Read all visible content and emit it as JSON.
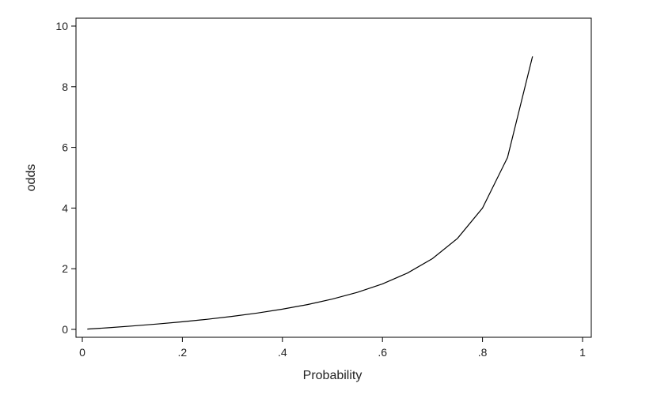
{
  "chart_data": {
    "type": "line",
    "title": "",
    "xlabel": "Probability",
    "ylabel": "odds",
    "xlim": [
      0,
      1
    ],
    "ylim": [
      0,
      10
    ],
    "x_ticks": [
      {
        "value": 0,
        "label": "0"
      },
      {
        "value": 0.2,
        "label": ".2"
      },
      {
        "value": 0.4,
        "label": ".4"
      },
      {
        "value": 0.6,
        "label": ".6"
      },
      {
        "value": 0.8,
        "label": ".8"
      },
      {
        "value": 1,
        "label": "1"
      }
    ],
    "y_ticks": [
      {
        "value": 0,
        "label": "0"
      },
      {
        "value": 2,
        "label": "2"
      },
      {
        "value": 4,
        "label": "4"
      },
      {
        "value": 6,
        "label": "6"
      },
      {
        "value": 8,
        "label": "8"
      },
      {
        "value": 10,
        "label": "10"
      }
    ],
    "grid": false,
    "legend": "none",
    "line_color": "#000000",
    "series": [
      {
        "x": [
          0.01,
          0.05,
          0.1,
          0.15,
          0.2,
          0.25,
          0.3,
          0.35,
          0.4,
          0.45,
          0.5,
          0.55,
          0.6,
          0.65,
          0.7,
          0.75,
          0.8,
          0.85,
          0.9
        ],
        "y": [
          0.01,
          0.053,
          0.111,
          0.176,
          0.25,
          0.333,
          0.429,
          0.538,
          0.667,
          0.818,
          1.0,
          1.222,
          1.5,
          1.857,
          2.333,
          3.0,
          4.0,
          5.667,
          9.0
        ]
      }
    ]
  }
}
